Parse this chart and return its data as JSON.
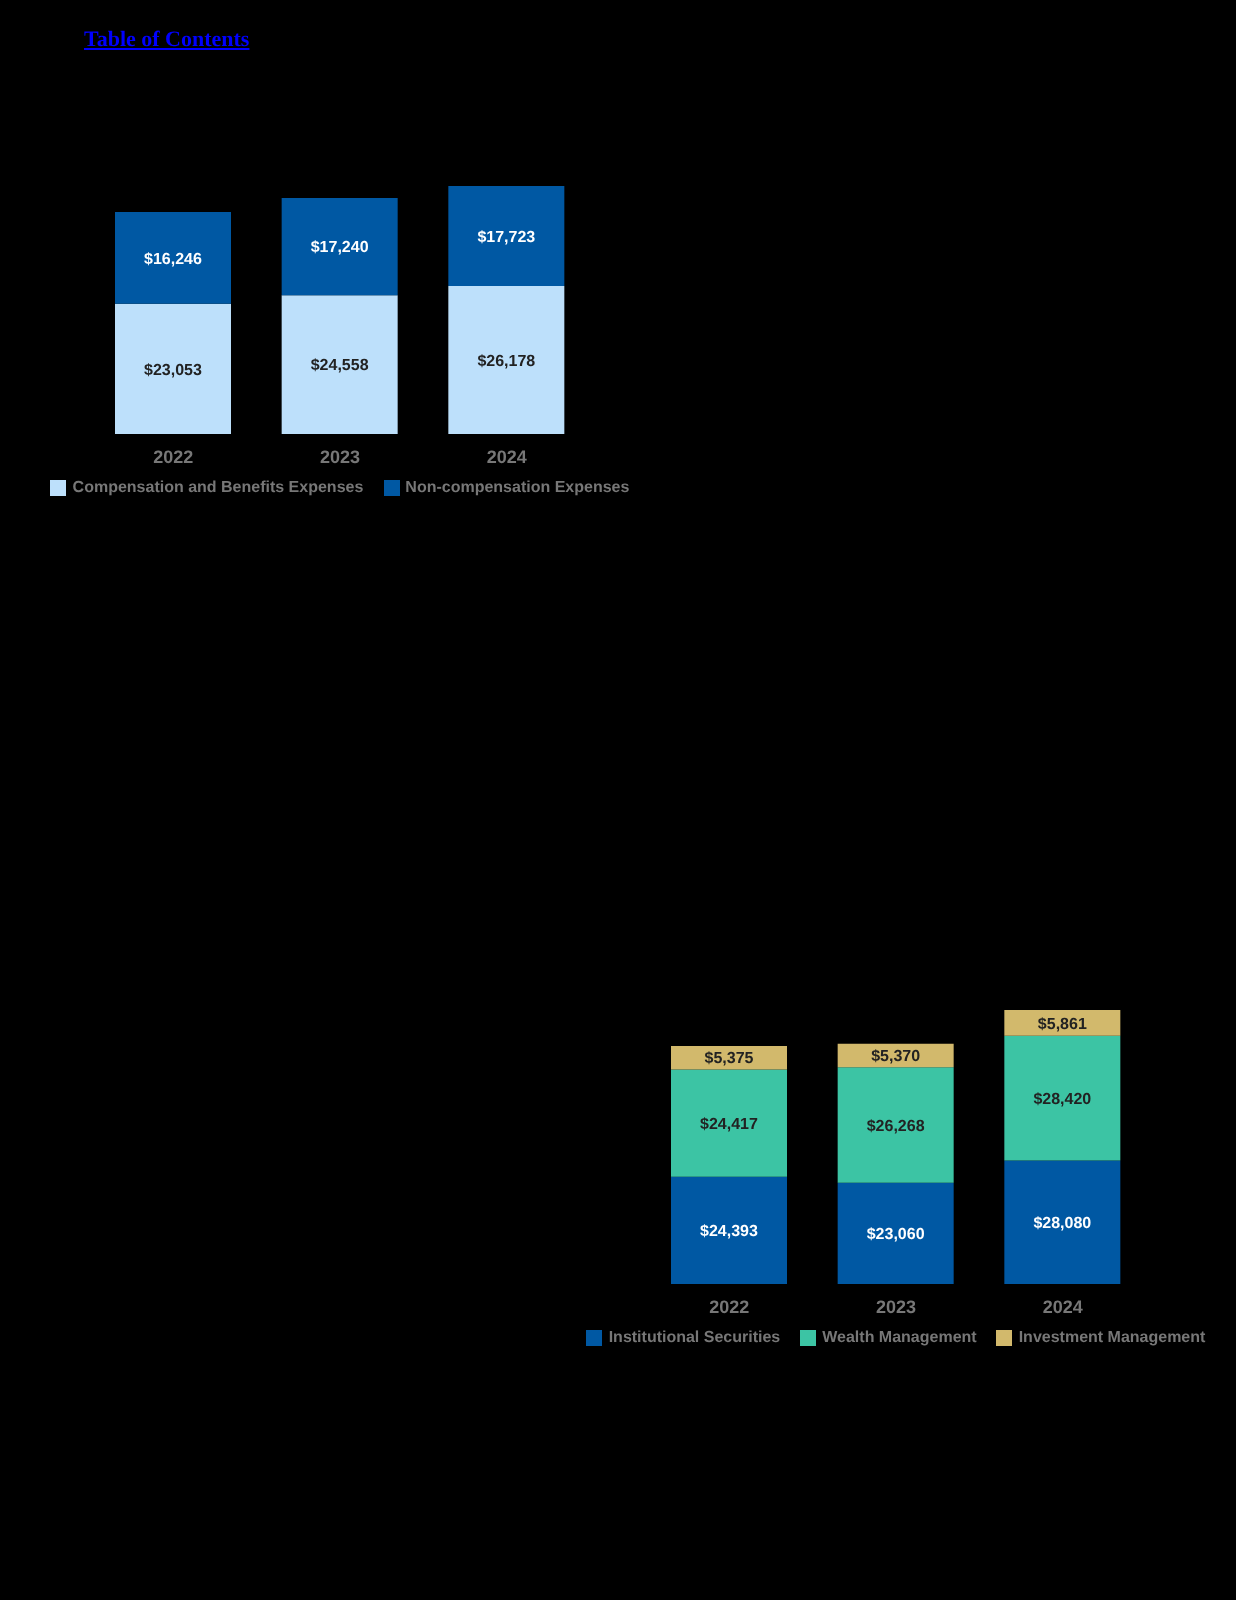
{
  "chart_data": [
    {
      "type": "bar",
      "stacked": true,
      "annotations": [
        "Table of Contents"
      ],
      "categories": [
        "2022",
        "2023",
        "2024"
      ],
      "legend": "bottom",
      "series": [
        {
          "name": "Compensation and Benefits Expenses",
          "color": "#bde0fb",
          "values": [
            23053,
            24558,
            26178
          ],
          "value_labels": [
            "$23,053",
            "$24,558",
            "$26,178"
          ]
        },
        {
          "name": "Non-compensation Expenses",
          "color": "#0058a3",
          "values": [
            16246,
            17240,
            17723
          ],
          "value_labels": [
            "$16,246",
            "$17,240",
            "$17,723"
          ]
        }
      ]
    },
    {
      "type": "bar",
      "stacked": true,
      "categories": [
        "2022",
        "2023",
        "2024"
      ],
      "legend": "bottom",
      "series": [
        {
          "name": "Institutional Securities",
          "color": "#0058a3",
          "values": [
            24393,
            23060,
            28080
          ],
          "value_labels": [
            "$24,393",
            "$23,060",
            "$28,080"
          ]
        },
        {
          "name": "Wealth Management",
          "color": "#3cc4a4",
          "values": [
            24417,
            26268,
            28420
          ],
          "value_labels": [
            "$24,417",
            "$26,268",
            "$28,420"
          ]
        },
        {
          "name": "Investment Management",
          "color": "#d2b96c",
          "values": [
            5375,
            5370,
            5861
          ],
          "value_labels": [
            "$5,375",
            "$5,370",
            "$5,861"
          ]
        }
      ]
    }
  ]
}
